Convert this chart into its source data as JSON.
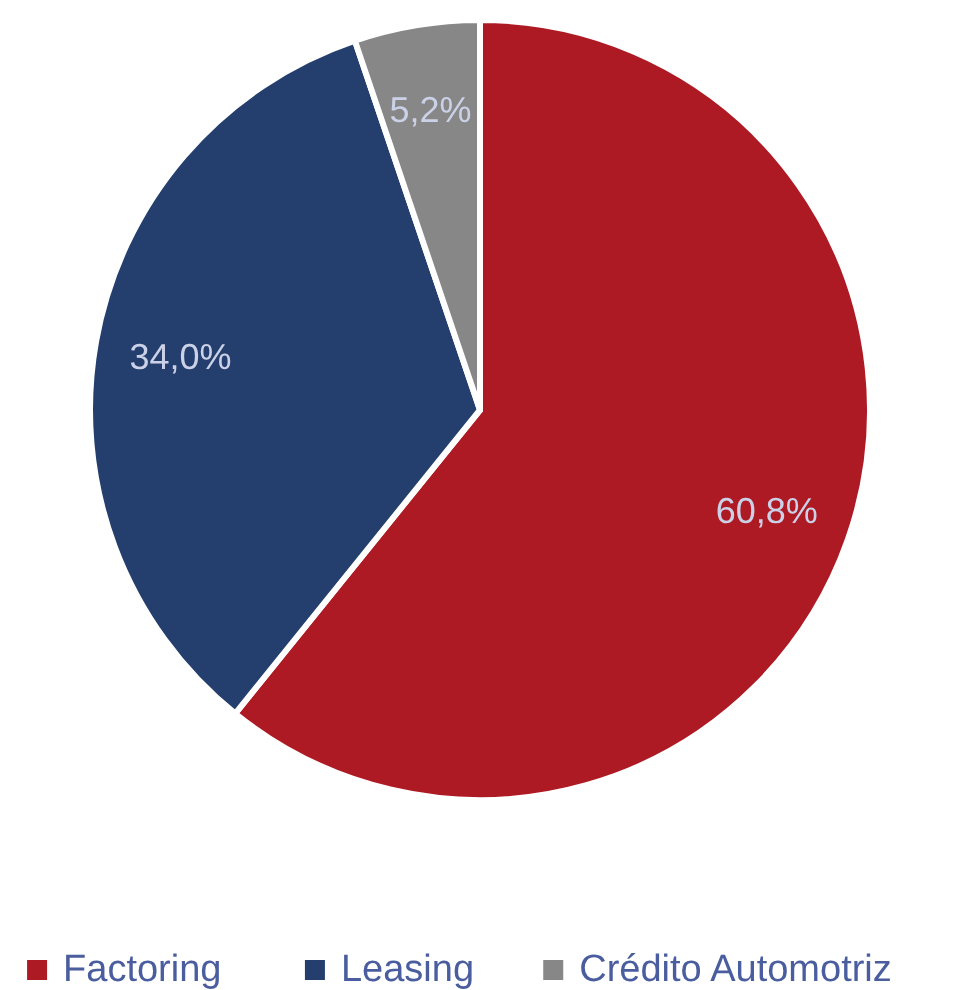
{
  "chart_data": {
    "type": "pie",
    "categories": [
      "Factoring",
      "Leasing",
      "Crédito Automotriz"
    ],
    "values": [
      60.8,
      34.0,
      5.2
    ],
    "colors": [
      "#ae1a24",
      "#243f6e",
      "#878787"
    ],
    "value_labels": [
      "60,8%",
      "34,0%",
      "5,2%"
    ],
    "legend": "bottom"
  }
}
